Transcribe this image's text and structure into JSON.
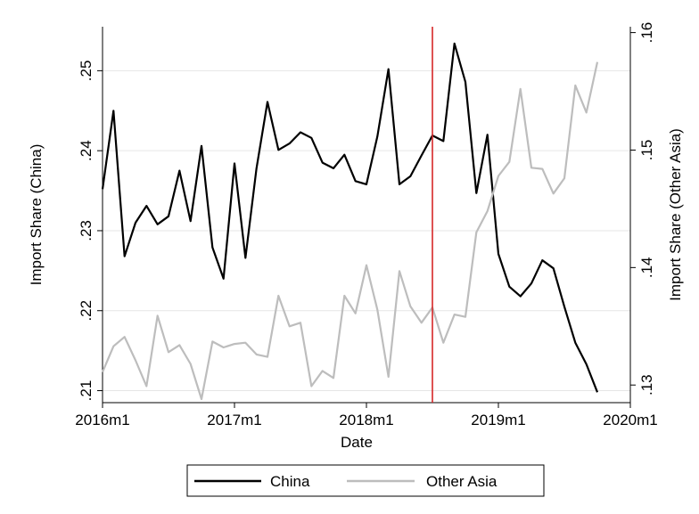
{
  "chart_data": {
    "type": "line",
    "title": "",
    "xlabel": "Date",
    "ylabel_left": "Import Share (China)",
    "ylabel_right": "Import Share (Other Asia)",
    "x_ticks": [
      {
        "value": 0,
        "label": "2016m1"
      },
      {
        "value": 12,
        "label": "2017m1"
      },
      {
        "value": 24,
        "label": "2018m1"
      },
      {
        "value": 36,
        "label": "2019m1"
      },
      {
        "value": 48,
        "label": "2020m1"
      }
    ],
    "xlim": [
      0,
      48
    ],
    "ylim_left": [
      0.2085,
      0.2555
    ],
    "ylim_right": [
      0.1285,
      0.1605
    ],
    "y_ticks_left": [
      {
        "value": 0.21,
        "label": ".21"
      },
      {
        "value": 0.22,
        "label": ".22"
      },
      {
        "value": 0.23,
        "label": ".23"
      },
      {
        "value": 0.24,
        "label": ".24"
      },
      {
        "value": 0.25,
        "label": ".25"
      }
    ],
    "y_ticks_right": [
      {
        "value": 0.13,
        "label": ".13"
      },
      {
        "value": 0.14,
        "label": ".14"
      },
      {
        "value": 0.15,
        "label": ".15"
      },
      {
        "value": 0.16,
        "label": ".16"
      }
    ],
    "grid": true,
    "vertical_line": {
      "x": 30,
      "color": "#d62728"
    },
    "legend_position": "bottom",
    "series": [
      {
        "name": "China",
        "axis": "left",
        "color": "#000000",
        "x": [
          0,
          1,
          2,
          3,
          4,
          5,
          6,
          7,
          8,
          9,
          10,
          11,
          12,
          13,
          14,
          15,
          16,
          17,
          18,
          19,
          20,
          21,
          22,
          23,
          24,
          25,
          26,
          27,
          28,
          29,
          30,
          31,
          32,
          33,
          34,
          35,
          36,
          37,
          38,
          39,
          40,
          41,
          42,
          43,
          44,
          45
        ],
        "values": [
          0.2352,
          0.245,
          0.2268,
          0.231,
          0.2331,
          0.2308,
          0.2318,
          0.2375,
          0.2312,
          0.2406,
          0.2279,
          0.224,
          0.2384,
          0.2266,
          0.2378,
          0.2461,
          0.2401,
          0.2409,
          0.2423,
          0.2416,
          0.2385,
          0.2378,
          0.2395,
          0.2362,
          0.2358,
          0.2418,
          0.2502,
          0.2358,
          0.2368,
          0.2394,
          0.2419,
          0.2412,
          0.2534,
          0.2486,
          0.2347,
          0.242,
          0.2271,
          0.223,
          0.2218,
          0.2234,
          0.2263,
          0.2253,
          0.2205,
          0.216,
          0.2133,
          0.2098
        ]
      },
      {
        "name": "Other Asia",
        "axis": "right",
        "color": "#bdbdbd",
        "x": [
          0,
          1,
          2,
          3,
          4,
          5,
          6,
          7,
          8,
          9,
          10,
          11,
          12,
          13,
          14,
          15,
          16,
          17,
          18,
          19,
          20,
          21,
          22,
          23,
          24,
          25,
          26,
          27,
          28,
          29,
          30,
          31,
          32,
          33,
          34,
          35,
          36,
          37,
          38,
          39,
          40,
          41,
          42,
          43,
          44,
          45
        ],
        "values": [
          0.1311,
          0.1333,
          0.1341,
          0.1321,
          0.1299,
          0.1359,
          0.1328,
          0.1334,
          0.1318,
          0.1288,
          0.1337,
          0.1332,
          0.1335,
          0.1336,
          0.1326,
          0.1324,
          0.1376,
          0.135,
          0.1353,
          0.1299,
          0.1312,
          0.1306,
          0.1376,
          0.1361,
          0.1402,
          0.1364,
          0.1307,
          0.1397,
          0.1367,
          0.1353,
          0.1366,
          0.1336,
          0.136,
          0.1358,
          0.143,
          0.1448,
          0.1478,
          0.149,
          0.1552,
          0.1485,
          0.1484,
          0.1463,
          0.1476,
          0.1555,
          0.1532,
          0.1575
        ]
      }
    ]
  }
}
